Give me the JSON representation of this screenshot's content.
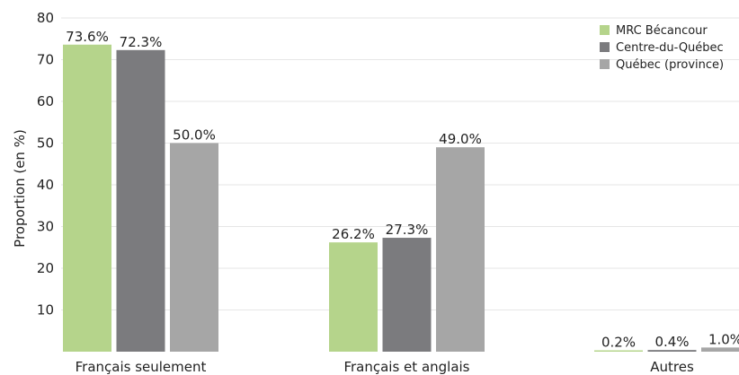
{
  "chart_data": {
    "type": "bar",
    "title": "",
    "xlabel": "",
    "ylabel": "Proportion (en %)",
    "ylim": [
      0,
      80
    ],
    "yticks": [
      10,
      20,
      30,
      40,
      50,
      60,
      70,
      80
    ],
    "grid": true,
    "legend_position": "top-right",
    "categories": [
      "Français seulement",
      "Français et anglais",
      "Autres"
    ],
    "series": [
      {
        "name": "MRC Bécancour",
        "color": "#b5d48b",
        "values": [
          73.6,
          26.2,
          0.2
        ],
        "labels": [
          "73.6%",
          "26.2%",
          "0.2%"
        ]
      },
      {
        "name": "Centre-du-Québec",
        "color": "#7b7b7e",
        "values": [
          72.3,
          27.3,
          0.4
        ],
        "labels": [
          "72.3%",
          "27.3%",
          "0.4%"
        ]
      },
      {
        "name": "Québec (province)",
        "color": "#a6a6a6",
        "values": [
          50.0,
          49.0,
          1.0
        ],
        "labels": [
          "50.0%",
          "49.0%",
          "1.0%"
        ]
      }
    ]
  }
}
